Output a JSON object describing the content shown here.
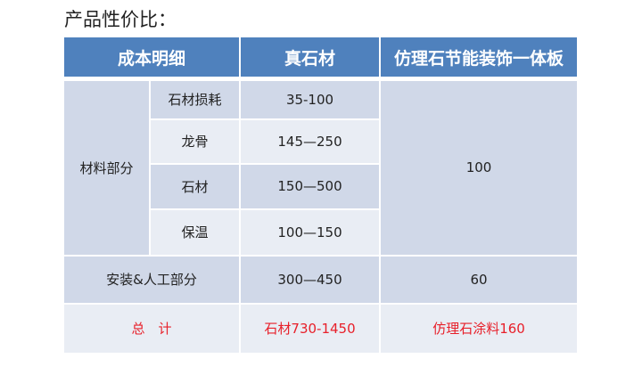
{
  "title": "产品性价比：",
  "header": [
    "成本明细",
    "真石材",
    "仿理石节能装饰一体板"
  ],
  "material": {
    "label": "材料部分",
    "items": [
      {
        "name": "石材损耗",
        "real": "35-100"
      },
      {
        "name": "龙骨",
        "real": "145—250"
      },
      {
        "name": "石材",
        "real": "150—500"
      },
      {
        "name": "保温",
        "real": "100—150"
      }
    ],
    "alt_value": "100"
  },
  "install": {
    "label": "安装&人工部分",
    "real": "300—450",
    "alt": "60"
  },
  "total": {
    "label": "总　计",
    "real": "石材730-1450",
    "alt": "仿理石涂料160"
  },
  "colors": {
    "header": "#4F81BD",
    "band_dark": "#D0D8E8",
    "band_light": "#E9EDF4",
    "total_text": "#E8202A"
  }
}
